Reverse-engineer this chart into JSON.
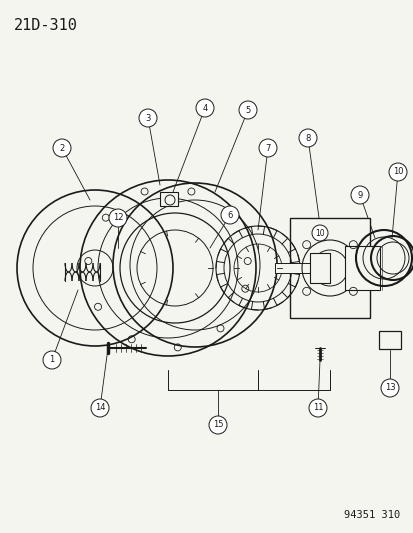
{
  "title": "21D-310",
  "watermark": "94351 310",
  "bg_color": "#f5f5f0",
  "line_color": "#1a1a1a",
  "title_fontsize": 11,
  "watermark_fontsize": 7.5
}
